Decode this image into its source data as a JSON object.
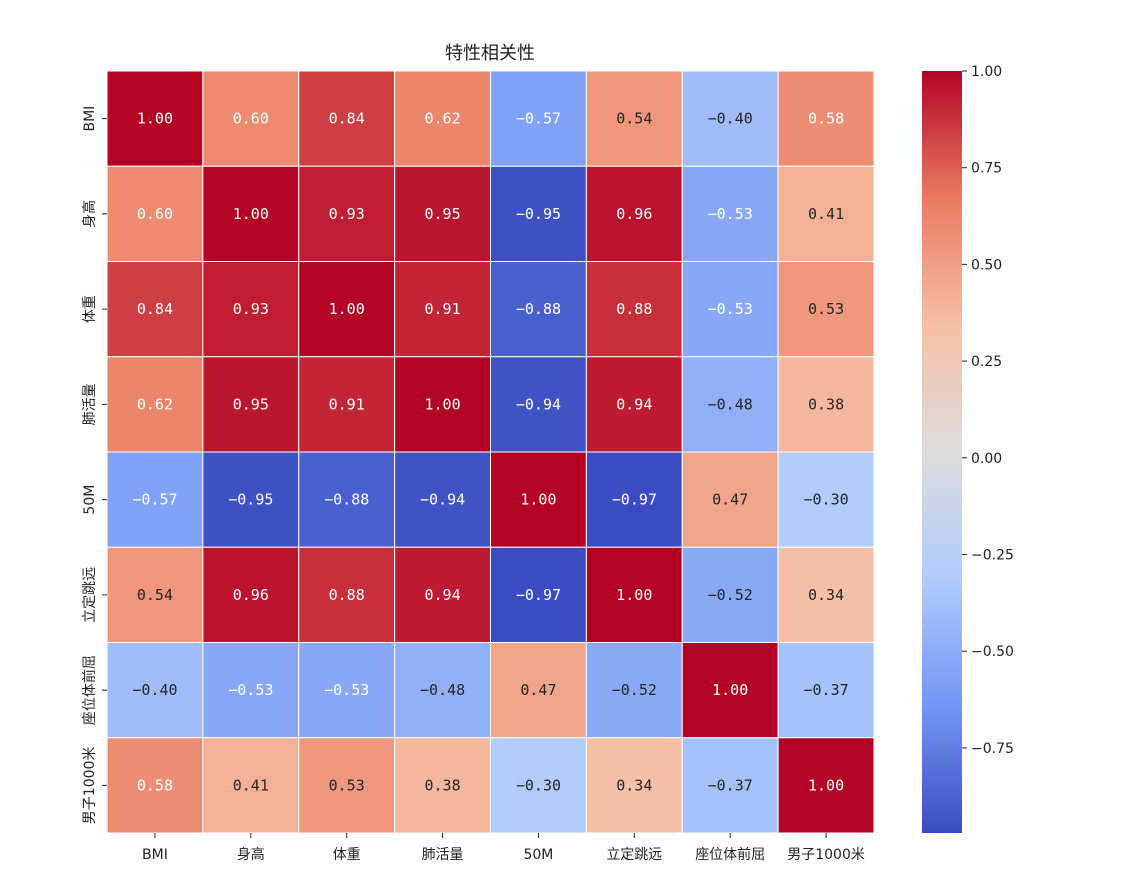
{
  "chart_data": {
    "type": "heatmap",
    "title": "特性相关性",
    "xlabel": "",
    "ylabel": "",
    "labels": [
      "BMI",
      "身高",
      "体重",
      "肺活量",
      "50M",
      "立定跳远",
      "座位体前屈",
      "男子1000米"
    ],
    "matrix": [
      [
        1.0,
        0.6,
        0.84,
        0.62,
        -0.57,
        0.54,
        -0.4,
        0.58
      ],
      [
        0.6,
        1.0,
        0.93,
        0.95,
        -0.95,
        0.96,
        -0.53,
        0.41
      ],
      [
        0.84,
        0.93,
        1.0,
        0.91,
        -0.88,
        0.88,
        -0.53,
        0.53
      ],
      [
        0.62,
        0.95,
        0.91,
        1.0,
        -0.94,
        0.94,
        -0.48,
        0.38
      ],
      [
        -0.57,
        -0.95,
        -0.88,
        -0.94,
        1.0,
        -0.97,
        0.47,
        -0.3
      ],
      [
        0.54,
        0.96,
        0.88,
        0.94,
        -0.97,
        1.0,
        -0.52,
        0.34
      ],
      [
        -0.4,
        -0.53,
        -0.53,
        -0.48,
        0.47,
        -0.52,
        1.0,
        -0.37
      ],
      [
        0.58,
        0.41,
        0.53,
        0.38,
        -0.3,
        0.34,
        -0.37,
        1.0
      ]
    ],
    "annotation_format": "0.00",
    "colormap": "coolwarm",
    "colormap_stops": [
      "#3b4cc0",
      "#7396f5",
      "#b0cbfc",
      "#dddcdc",
      "#f6bfa6",
      "#ea7b60",
      "#b40426"
    ],
    "value_range": [
      -0.97,
      1.0
    ],
    "colorbar": {
      "placement": "right",
      "ticks": [
        1.0,
        0.75,
        0.5,
        0.25,
        0.0,
        -0.25,
        -0.5,
        -0.75
      ],
      "tick_labels": [
        "1.00",
        "0.75",
        "0.50",
        "0.25",
        "0.00",
        "−0.25",
        "−0.50",
        "−0.75"
      ]
    },
    "grid": false,
    "cell_separator_color": "#ffffff",
    "text_dark_color": "#262626",
    "text_light_color": "#ffffff"
  }
}
